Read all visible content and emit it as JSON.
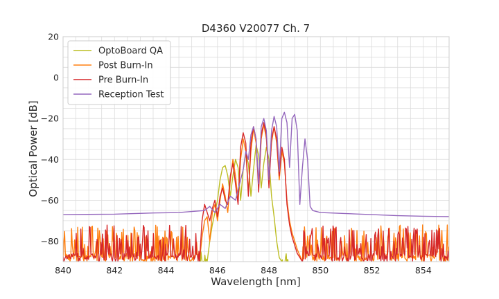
{
  "chart_data": {
    "type": "line",
    "title": "D4360 V20077 Ch. 7",
    "xlabel": "Wavelength [nm]",
    "ylabel": "Optical Power [dB]",
    "xlim": [
      840,
      855
    ],
    "ylim": [
      -90,
      20
    ],
    "xticks": [
      840,
      842,
      844,
      846,
      848,
      850,
      852,
      854
    ],
    "yticks": [
      20,
      0,
      -20,
      -40,
      -60,
      -80
    ],
    "grid": true,
    "legend_position": "top-left",
    "series": [
      {
        "name": "OptoBoard QA",
        "color": "#bcbd22",
        "noise_floor": "below -88 outside 845.7-848.6",
        "points": [
          [
            845.6,
            -90
          ],
          [
            845.7,
            -80
          ],
          [
            845.8,
            -72
          ],
          [
            845.9,
            -66
          ],
          [
            846.0,
            -60
          ],
          [
            846.1,
            -50
          ],
          [
            846.2,
            -44
          ],
          [
            846.3,
            -43
          ],
          [
            846.4,
            -48
          ],
          [
            846.5,
            -58
          ],
          [
            846.6,
            -48
          ],
          [
            846.7,
            -40
          ],
          [
            846.8,
            -44
          ],
          [
            846.9,
            -60
          ],
          [
            847.0,
            -45
          ],
          [
            847.1,
            -37
          ],
          [
            847.2,
            -42
          ],
          [
            847.3,
            -58
          ],
          [
            847.4,
            -45
          ],
          [
            847.5,
            -33
          ],
          [
            847.6,
            -38
          ],
          [
            847.7,
            -54
          ],
          [
            847.8,
            -42
          ],
          [
            847.9,
            -34
          ],
          [
            848.0,
            -40
          ],
          [
            848.1,
            -58
          ],
          [
            848.2,
            -68
          ],
          [
            848.3,
            -80
          ],
          [
            848.4,
            -88
          ],
          [
            848.5,
            -90
          ]
        ]
      },
      {
        "name": "Post Burn-In",
        "color": "#ff7f0e",
        "noise_floor": "-90 to -72 outside 845.3-849.3",
        "points": [
          [
            845.3,
            -90
          ],
          [
            845.4,
            -78
          ],
          [
            845.5,
            -70
          ],
          [
            845.6,
            -68
          ],
          [
            845.7,
            -80
          ],
          [
            845.8,
            -66
          ],
          [
            845.9,
            -62
          ],
          [
            846.0,
            -70
          ],
          [
            846.1,
            -60
          ],
          [
            846.2,
            -52
          ],
          [
            846.3,
            -58
          ],
          [
            846.4,
            -66
          ],
          [
            846.5,
            -50
          ],
          [
            846.6,
            -40
          ],
          [
            846.7,
            -48
          ],
          [
            846.8,
            -60
          ],
          [
            846.9,
            -40
          ],
          [
            847.0,
            -30
          ],
          [
            847.1,
            -36
          ],
          [
            847.2,
            -56
          ],
          [
            847.3,
            -36
          ],
          [
            847.4,
            -25
          ],
          [
            847.5,
            -32
          ],
          [
            847.6,
            -52
          ],
          [
            847.7,
            -30
          ],
          [
            847.8,
            -23
          ],
          [
            847.9,
            -30
          ],
          [
            848.0,
            -50
          ],
          [
            848.1,
            -32
          ],
          [
            848.2,
            -24
          ],
          [
            848.3,
            -32
          ],
          [
            848.4,
            -50
          ],
          [
            848.5,
            -36
          ],
          [
            848.6,
            -42
          ],
          [
            848.7,
            -60
          ],
          [
            848.8,
            -70
          ],
          [
            848.9,
            -76
          ],
          [
            849.1,
            -84
          ],
          [
            849.3,
            -90
          ]
        ]
      },
      {
        "name": "Pre Burn-In",
        "color": "#d62728",
        "noise_floor": "-90 to -72 outside 845.3-849.3",
        "points": [
          [
            845.3,
            -90
          ],
          [
            845.4,
            -70
          ],
          [
            845.5,
            -62
          ],
          [
            845.6,
            -66
          ],
          [
            845.7,
            -70
          ],
          [
            845.8,
            -64
          ],
          [
            845.9,
            -60
          ],
          [
            846.0,
            -68
          ],
          [
            846.1,
            -58
          ],
          [
            846.2,
            -54
          ],
          [
            846.3,
            -60
          ],
          [
            846.4,
            -62
          ],
          [
            846.5,
            -48
          ],
          [
            846.6,
            -42
          ],
          [
            846.7,
            -52
          ],
          [
            846.8,
            -62
          ],
          [
            846.9,
            -34
          ],
          [
            847.0,
            -27
          ],
          [
            847.1,
            -32
          ],
          [
            847.2,
            -58
          ],
          [
            847.3,
            -32
          ],
          [
            847.4,
            -24
          ],
          [
            847.5,
            -30
          ],
          [
            847.6,
            -56
          ],
          [
            847.7,
            -28
          ],
          [
            847.8,
            -22
          ],
          [
            847.9,
            -28
          ],
          [
            848.0,
            -54
          ],
          [
            848.1,
            -30
          ],
          [
            848.2,
            -24
          ],
          [
            848.3,
            -30
          ],
          [
            848.4,
            -48
          ],
          [
            848.5,
            -34
          ],
          [
            848.6,
            -40
          ],
          [
            848.7,
            -62
          ],
          [
            848.8,
            -72
          ],
          [
            848.9,
            -78
          ],
          [
            849.1,
            -86
          ],
          [
            849.3,
            -90
          ]
        ]
      },
      {
        "name": "Reception Test",
        "color": "#9467bd",
        "points": [
          [
            840.0,
            -67
          ],
          [
            842.0,
            -66.8
          ],
          [
            843.5,
            -66.2
          ],
          [
            844.5,
            -66
          ],
          [
            845.0,
            -65.5
          ],
          [
            845.5,
            -65
          ],
          [
            845.7,
            -63
          ],
          [
            845.9,
            -66
          ],
          [
            846.1,
            -62
          ],
          [
            846.3,
            -64
          ],
          [
            846.5,
            -58
          ],
          [
            846.7,
            -60
          ],
          [
            846.9,
            -50
          ],
          [
            847.0,
            -45
          ],
          [
            847.1,
            -36
          ],
          [
            847.2,
            -40
          ],
          [
            847.3,
            -28
          ],
          [
            847.4,
            -24
          ],
          [
            847.5,
            -30
          ],
          [
            847.6,
            -52
          ],
          [
            847.7,
            -24
          ],
          [
            847.8,
            -20
          ],
          [
            847.9,
            -26
          ],
          [
            848.0,
            -50
          ],
          [
            848.1,
            -26
          ],
          [
            848.2,
            -19
          ],
          [
            848.3,
            -24
          ],
          [
            848.4,
            -46
          ],
          [
            848.5,
            -20
          ],
          [
            848.6,
            -17
          ],
          [
            848.7,
            -22
          ],
          [
            848.8,
            -44
          ],
          [
            848.9,
            -20
          ],
          [
            849.0,
            -18
          ],
          [
            849.1,
            -26
          ],
          [
            849.2,
            -62
          ],
          [
            849.3,
            -44
          ],
          [
            849.4,
            -30
          ],
          [
            849.5,
            -40
          ],
          [
            849.6,
            -63
          ],
          [
            849.7,
            -65
          ],
          [
            850.0,
            -66
          ],
          [
            851.0,
            -66.5
          ],
          [
            852.0,
            -67
          ],
          [
            853.0,
            -67.5
          ],
          [
            854.0,
            -67.8
          ],
          [
            855.0,
            -68
          ]
        ]
      }
    ]
  }
}
